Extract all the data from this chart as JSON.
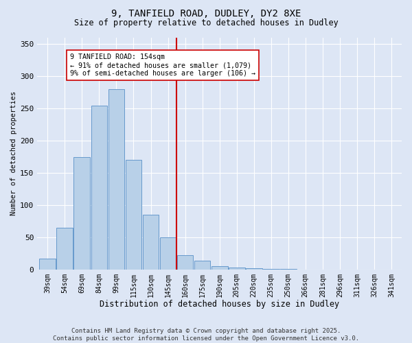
{
  "title": "9, TANFIELD ROAD, DUDLEY, DY2 8XE",
  "subtitle": "Size of property relative to detached houses in Dudley",
  "xlabel": "Distribution of detached houses by size in Dudley",
  "ylabel": "Number of detached properties",
  "bar_color": "#b8d0e8",
  "bar_edge_color": "#6699cc",
  "vline_color": "#cc0000",
  "vline_index": 8,
  "annotation_text": "9 TANFIELD ROAD: 154sqm\n← 91% of detached houses are smaller (1,079)\n9% of semi-detached houses are larger (106) →",
  "annotation_box_color": "#ffffff",
  "annotation_box_edge": "#cc0000",
  "categories": [
    "39sqm",
    "54sqm",
    "69sqm",
    "84sqm",
    "99sqm",
    "115sqm",
    "130sqm",
    "145sqm",
    "160sqm",
    "175sqm",
    "190sqm",
    "205sqm",
    "220sqm",
    "235sqm",
    "250sqm",
    "266sqm",
    "281sqm",
    "296sqm",
    "311sqm",
    "326sqm",
    "341sqm"
  ],
  "values": [
    17,
    65,
    175,
    255,
    280,
    170,
    85,
    50,
    22,
    14,
    5,
    3,
    2,
    1,
    1,
    0,
    0,
    0,
    0,
    0,
    0
  ],
  "ylim": [
    0,
    360
  ],
  "yticks": [
    0,
    50,
    100,
    150,
    200,
    250,
    300,
    350
  ],
  "background_color": "#dde6f5",
  "footer_text": "Contains HM Land Registry data © Crown copyright and database right 2025.\nContains public sector information licensed under the Open Government Licence v3.0.",
  "grid_color": "#ffffff",
  "figsize": [
    6.0,
    5.0
  ],
  "dpi": 100
}
